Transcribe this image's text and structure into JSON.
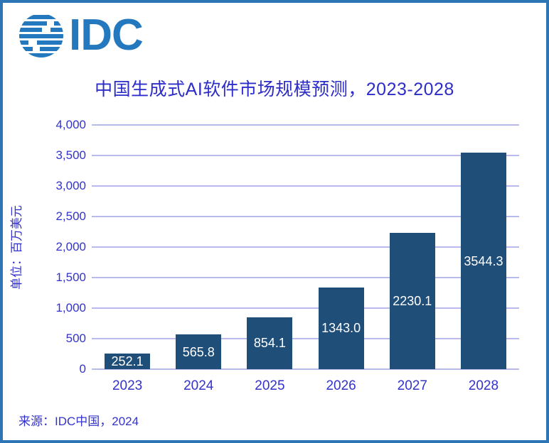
{
  "logo": {
    "text": "IDC",
    "icon": "idc-globe-icon"
  },
  "source": "来源：IDC中国，2024",
  "colors": {
    "border": "#2E75B6",
    "background": "#ffffff",
    "logo": "#2478BE",
    "title_text": "#2D2DC7",
    "axis_text": "#3333CC",
    "gridline": "#B8BAEE",
    "bar": "#1F4E79",
    "bar_label": "#ffffff"
  },
  "chart_data": {
    "type": "bar",
    "title": "中国生成式AI软件市场规模预测，2023-2028",
    "categories": [
      "2023",
      "2024",
      "2025",
      "2026",
      "2027",
      "2028"
    ],
    "values": [
      252.1,
      565.8,
      854.1,
      1343.0,
      2230.1,
      3544.3
    ],
    "value_labels": [
      "252.1",
      "565.8",
      "854.1",
      "1343.0",
      "2230.1",
      "3544.3"
    ],
    "xlabel": "",
    "ylabel": "单位：百万美元",
    "ylim": [
      0,
      4000
    ],
    "ytick_step": 500,
    "ytick_labels": [
      "0",
      "500",
      "1,000",
      "1,500",
      "2,000",
      "2,500",
      "3,000",
      "3,500",
      "4,000"
    ],
    "grid": "horizontal",
    "legend": "none",
    "bar_label_position": "inside-center"
  }
}
